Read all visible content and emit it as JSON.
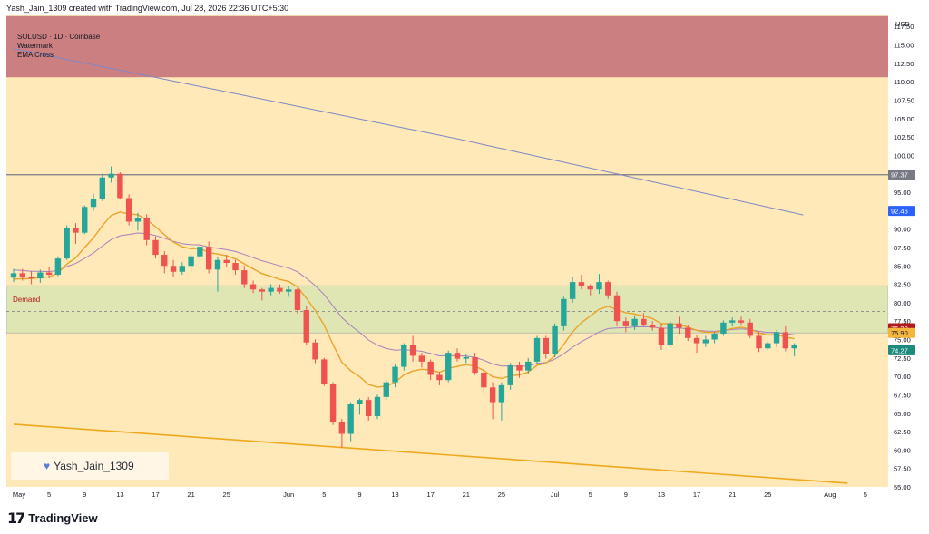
{
  "header": {
    "text": "Yash_Jain_1309 created with TradingView.com, Jul 28, 2026 22:36 UTC+5:30"
  },
  "legend": {
    "symbol_line": "SOLUSD · 1D · Coinbase",
    "line2": "Watermark",
    "line3": "EMA Cross"
  },
  "zones": {
    "demand_label": "Demand"
  },
  "watermark": {
    "author": "Yash_Jain_1309"
  },
  "footer": {
    "brand": "TradingView"
  },
  "colors": {
    "background": "#ffe9b8",
    "supply_zone": "#cb7f80",
    "demand_zone": "#dfe6b4",
    "candle_up": "#26a69a",
    "candle_down": "#ef5350",
    "ema_fast": "#eba32a",
    "ema_slow": "#a87fbf",
    "sma_long": "#7e88c7",
    "trendline": "#f0a81c"
  },
  "chart_data": {
    "type": "candlestick",
    "currency": "USD",
    "x_tick_labels": [
      "May",
      "5",
      "9",
      "13",
      "17",
      "21",
      "25",
      "Jun",
      "5",
      "9",
      "13",
      "17",
      "21",
      "25",
      "Jul",
      "5",
      "9",
      "13",
      "17",
      "21",
      "25",
      "Aug",
      "5"
    ],
    "y_tick_labels": [
      "117.50",
      "115.00",
      "112.50",
      "110.00",
      "107.50",
      "105.00",
      "102.50",
      "100.00",
      "95.00",
      "92.50",
      "90.00",
      "87.50",
      "85.00",
      "82.50",
      "80.00",
      "77.50",
      "75.00",
      "72.50",
      "70.00",
      "67.50",
      "65.00",
      "62.50",
      "60.00",
      "57.50",
      "55.00"
    ],
    "ylim": [
      55,
      119
    ],
    "price_badges": [
      {
        "value": "97.37",
        "color": "#787b86"
      },
      {
        "value": "92.46",
        "color": "#2962ff"
      },
      {
        "value": "76.30",
        "color": "#b01a1a"
      },
      {
        "value": "75.90",
        "color": "#f4b63b"
      },
      {
        "value": "74.27",
        "color": "#1d8a7e"
      }
    ],
    "horizontal_lines": [
      {
        "name": "resistance",
        "value": 97.37
      },
      {
        "name": "dashed-level",
        "value": 78.8
      },
      {
        "name": "last-price",
        "value": 74.27
      }
    ],
    "supply_zone": {
      "low": 110.6,
      "high": 118.9
    },
    "demand_zone": {
      "low": 75.9,
      "high": 82.3
    },
    "trendline": {
      "start": {
        "day": 0,
        "price": 63.5
      },
      "end": {
        "day": 94,
        "price": 55.5
      }
    },
    "candles": [
      [
        83.4,
        84.6,
        82.8,
        84.0
      ],
      [
        84.0,
        84.6,
        83.0,
        83.5
      ],
      [
        83.5,
        84.3,
        82.5,
        83.3
      ],
      [
        83.3,
        84.5,
        82.7,
        84.1
      ],
      [
        84.1,
        84.8,
        83.3,
        83.8
      ],
      [
        83.8,
        86.3,
        83.6,
        86.0
      ],
      [
        86.0,
        90.5,
        85.8,
        90.2
      ],
      [
        90.2,
        90.8,
        88.0,
        89.5
      ],
      [
        89.5,
        93.2,
        89.3,
        93.0
      ],
      [
        93.0,
        94.8,
        92.5,
        94.1
      ],
      [
        94.1,
        97.5,
        93.8,
        97.0
      ],
      [
        97.0,
        98.5,
        96.3,
        97.5
      ],
      [
        97.5,
        97.7,
        94.0,
        94.2
      ],
      [
        94.2,
        94.7,
        90.5,
        91.0
      ],
      [
        91.0,
        92.2,
        89.8,
        91.5
      ],
      [
        91.5,
        92.0,
        87.8,
        88.5
      ],
      [
        88.5,
        89.0,
        86.0,
        86.5
      ],
      [
        86.5,
        87.0,
        84.0,
        85.0
      ],
      [
        85.0,
        85.8,
        83.5,
        84.2
      ],
      [
        84.2,
        85.5,
        83.8,
        85.0
      ],
      [
        85.0,
        86.6,
        84.2,
        86.3
      ],
      [
        86.3,
        87.9,
        86.0,
        87.6
      ],
      [
        87.6,
        88.3,
        84.0,
        84.5
      ],
      [
        84.5,
        86.2,
        81.5,
        85.8
      ],
      [
        85.8,
        86.5,
        84.8,
        85.4
      ],
      [
        85.4,
        85.8,
        83.8,
        84.4
      ],
      [
        84.4,
        85.0,
        82.0,
        82.5
      ],
      [
        82.5,
        83.0,
        81.3,
        81.8
      ],
      [
        81.8,
        82.0,
        80.3,
        81.5
      ],
      [
        81.5,
        82.5,
        81.0,
        82.0
      ],
      [
        82.0,
        82.5,
        81.2,
        81.5
      ],
      [
        81.5,
        82.2,
        80.8,
        81.8
      ],
      [
        81.8,
        82.0,
        78.5,
        79.0
      ],
      [
        79.0,
        79.5,
        74.3,
        74.6
      ],
      [
        74.6,
        75.0,
        71.8,
        72.3
      ],
      [
        72.3,
        72.5,
        68.7,
        69.0
      ],
      [
        69.0,
        69.2,
        63.4,
        63.8
      ],
      [
        63.8,
        64.2,
        60.3,
        62.2
      ],
      [
        62.2,
        66.5,
        61.2,
        66.2
      ],
      [
        66.2,
        67.0,
        64.8,
        66.8
      ],
      [
        66.8,
        67.2,
        64.0,
        64.6
      ],
      [
        64.6,
        67.5,
        64.2,
        67.2
      ],
      [
        67.2,
        69.5,
        66.8,
        69.2
      ],
      [
        69.2,
        71.6,
        68.5,
        71.3
      ],
      [
        71.3,
        74.5,
        70.8,
        74.2
      ],
      [
        74.2,
        75.5,
        72.0,
        72.8
      ],
      [
        72.8,
        73.2,
        71.2,
        72.0
      ],
      [
        72.0,
        72.3,
        69.5,
        70.2
      ],
      [
        70.2,
        70.6,
        68.8,
        69.5
      ],
      [
        69.5,
        73.5,
        69.2,
        73.2
      ],
      [
        73.2,
        73.8,
        72.0,
        72.4
      ],
      [
        72.4,
        73.0,
        71.8,
        72.6
      ],
      [
        72.6,
        73.2,
        70.2,
        70.5
      ],
      [
        70.5,
        71.0,
        67.8,
        68.5
      ],
      [
        68.5,
        69.2,
        64.2,
        66.5
      ],
      [
        66.5,
        69.2,
        64.0,
        68.8
      ],
      [
        68.8,
        71.8,
        68.2,
        71.5
      ],
      [
        71.5,
        72.0,
        69.8,
        70.8
      ],
      [
        70.8,
        72.5,
        70.3,
        72.0
      ],
      [
        72.0,
        75.5,
        71.6,
        75.2
      ],
      [
        75.2,
        75.5,
        72.4,
        73.0
      ],
      [
        73.0,
        77.2,
        72.6,
        76.8
      ],
      [
        76.8,
        80.8,
        76.2,
        80.5
      ],
      [
        80.5,
        83.5,
        80.0,
        82.8
      ],
      [
        82.8,
        83.8,
        81.8,
        82.3
      ],
      [
        82.3,
        82.5,
        81.0,
        81.8
      ],
      [
        81.8,
        83.9,
        81.2,
        82.8
      ],
      [
        82.8,
        83.0,
        80.5,
        81.0
      ],
      [
        81.0,
        81.5,
        76.8,
        77.5
      ],
      [
        77.5,
        78.0,
        76.0,
        76.8
      ],
      [
        76.8,
        78.3,
        76.3,
        77.8
      ],
      [
        77.8,
        78.6,
        76.8,
        77.0
      ],
      [
        77.0,
        77.5,
        76.2,
        76.6
      ],
      [
        76.6,
        77.2,
        73.6,
        74.3
      ],
      [
        74.3,
        77.5,
        74.0,
        77.2
      ],
      [
        77.2,
        78.1,
        75.8,
        76.6
      ],
      [
        76.6,
        77.0,
        74.8,
        75.2
      ],
      [
        75.2,
        75.6,
        73.2,
        74.5
      ],
      [
        74.5,
        75.5,
        74.0,
        75.0
      ],
      [
        75.0,
        76.0,
        74.5,
        75.8
      ],
      [
        75.8,
        77.6,
        75.5,
        77.3
      ],
      [
        77.3,
        78.0,
        76.8,
        77.6
      ],
      [
        77.6,
        78.1,
        77.0,
        77.3
      ],
      [
        77.3,
        77.8,
        75.2,
        75.5
      ],
      [
        75.5,
        76.0,
        73.3,
        73.8
      ],
      [
        73.8,
        74.8,
        73.5,
        74.5
      ],
      [
        74.5,
        76.3,
        74.0,
        76.0
      ],
      [
        76.0,
        76.8,
        73.4,
        73.8
      ],
      [
        73.8,
        74.5,
        72.7,
        74.27
      ]
    ]
  }
}
